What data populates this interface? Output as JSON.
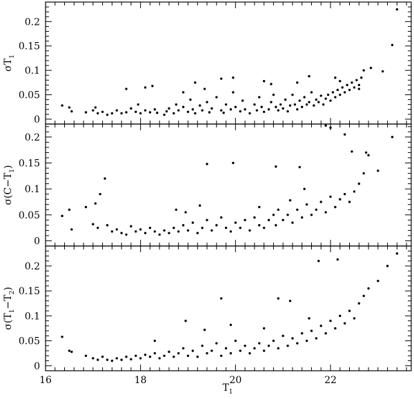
{
  "chart_data": {
    "type": "scatter",
    "shared_x": {
      "label": "T",
      "label_sub": "1",
      "xlim": [
        16.0,
        23.7
      ],
      "ticks": [
        16,
        18,
        20,
        22
      ]
    },
    "panels": [
      {
        "id": "top",
        "ylabel": {
          "prefix": "σT",
          "sub": "1",
          "suffix": ""
        },
        "ylim": [
          -0.01,
          0.24
        ],
        "yticks": [
          "0",
          "0.05",
          "0.1",
          "0.15",
          "0.2"
        ],
        "points": [
          [
            16.35,
            0.028
          ],
          [
            16.5,
            0.024
          ],
          [
            16.55,
            0.016
          ],
          [
            16.85,
            0.014
          ],
          [
            17.0,
            0.018
          ],
          [
            17.05,
            0.024
          ],
          [
            17.1,
            0.012
          ],
          [
            17.2,
            0.015
          ],
          [
            17.3,
            0.009
          ],
          [
            17.4,
            0.012
          ],
          [
            17.5,
            0.018
          ],
          [
            17.6,
            0.012
          ],
          [
            17.7,
            0.014
          ],
          [
            17.8,
            0.022
          ],
          [
            17.9,
            0.015
          ],
          [
            17.95,
            0.03
          ],
          [
            18.0,
            0.012
          ],
          [
            18.1,
            0.018
          ],
          [
            18.2,
            0.014
          ],
          [
            18.3,
            0.02
          ],
          [
            18.35,
            0.013
          ],
          [
            18.5,
            0.009
          ],
          [
            18.55,
            0.016
          ],
          [
            18.6,
            0.022
          ],
          [
            18.7,
            0.012
          ],
          [
            18.75,
            0.03
          ],
          [
            18.8,
            0.018
          ],
          [
            18.9,
            0.025
          ],
          [
            19.0,
            0.015
          ],
          [
            19.05,
            0.04
          ],
          [
            19.1,
            0.02
          ],
          [
            19.15,
            0.012
          ],
          [
            19.25,
            0.028
          ],
          [
            19.3,
            0.018
          ],
          [
            19.4,
            0.035
          ],
          [
            19.45,
            0.014
          ],
          [
            19.5,
            0.022
          ],
          [
            19.6,
            0.045
          ],
          [
            19.7,
            0.018
          ],
          [
            19.75,
            0.013
          ],
          [
            19.8,
            0.03
          ],
          [
            19.9,
            0.02
          ],
          [
            19.95,
            0.055
          ],
          [
            20.0,
            0.025
          ],
          [
            20.1,
            0.016
          ],
          [
            20.15,
            0.038
          ],
          [
            20.2,
            0.02
          ],
          [
            20.3,
            0.012
          ],
          [
            20.4,
            0.03
          ],
          [
            20.45,
            0.018
          ],
          [
            20.5,
            0.045
          ],
          [
            20.55,
            0.025
          ],
          [
            20.6,
            0.015
          ],
          [
            20.7,
            0.02
          ],
          [
            20.75,
            0.035
          ],
          [
            20.8,
            0.05
          ],
          [
            20.85,
            0.025
          ],
          [
            20.9,
            0.018
          ],
          [
            20.95,
            0.03
          ],
          [
            21.0,
            0.022
          ],
          [
            21.05,
            0.04
          ],
          [
            21.1,
            0.016
          ],
          [
            21.15,
            0.028
          ],
          [
            21.2,
            0.05
          ],
          [
            21.25,
            0.03
          ],
          [
            21.3,
            0.02
          ],
          [
            21.35,
            0.038
          ],
          [
            21.4,
            0.025
          ],
          [
            21.45,
            0.045
          ],
          [
            21.5,
            0.03
          ],
          [
            21.55,
            0.035
          ],
          [
            21.6,
            0.055
          ],
          [
            21.65,
            0.028
          ],
          [
            21.7,
            0.04
          ],
          [
            21.75,
            0.035
          ],
          [
            21.8,
            0.048
          ],
          [
            21.85,
            0.03
          ],
          [
            21.9,
            0.042
          ],
          [
            21.95,
            0.05
          ],
          [
            22.0,
            0.038
          ],
          [
            22.05,
            0.055
          ],
          [
            22.1,
            0.045
          ],
          [
            22.15,
            0.06
          ],
          [
            22.2,
            0.05
          ],
          [
            22.25,
            0.065
          ],
          [
            22.3,
            0.055
          ],
          [
            22.35,
            0.07
          ],
          [
            22.4,
            0.06
          ],
          [
            22.45,
            0.075
          ],
          [
            22.5,
            0.065
          ],
          [
            22.55,
            0.08
          ],
          [
            22.6,
            0.07
          ],
          [
            22.65,
            0.085
          ],
          [
            22.7,
            0.1
          ],
          [
            22.85,
            0.105
          ],
          [
            23.1,
            0.098
          ],
          [
            23.3,
            0.152
          ],
          [
            23.4,
            0.225
          ],
          [
            17.7,
            0.062
          ],
          [
            18.1,
            0.065
          ],
          [
            18.25,
            0.068
          ],
          [
            18.9,
            0.055
          ],
          [
            19.15,
            0.075
          ],
          [
            19.35,
            0.062
          ],
          [
            19.7,
            0.083
          ],
          [
            19.95,
            0.085
          ],
          [
            20.6,
            0.078
          ],
          [
            20.75,
            0.072
          ],
          [
            21.3,
            0.075
          ],
          [
            21.55,
            0.088
          ],
          [
            22.1,
            0.085
          ],
          [
            22.6,
            0.062
          ],
          [
            22.2,
            0.078
          ]
        ]
      },
      {
        "id": "middle",
        "ylabel": {
          "prefix": "σ(C−T",
          "sub": "1",
          "suffix": ")"
        },
        "ylim": [
          -0.01,
          0.225
        ],
        "yticks": [
          "0",
          "0.05",
          "0.1",
          "0.15",
          "0.2"
        ],
        "points": [
          [
            16.35,
            0.048
          ],
          [
            16.5,
            0.06
          ],
          [
            16.55,
            0.022
          ],
          [
            16.85,
            0.065
          ],
          [
            17.0,
            0.032
          ],
          [
            17.05,
            0.072
          ],
          [
            17.1,
            0.025
          ],
          [
            17.15,
            0.09
          ],
          [
            17.25,
            0.12
          ],
          [
            17.3,
            0.03
          ],
          [
            17.4,
            0.018
          ],
          [
            17.5,
            0.022
          ],
          [
            17.6,
            0.015
          ],
          [
            17.7,
            0.012
          ],
          [
            17.8,
            0.028
          ],
          [
            17.9,
            0.018
          ],
          [
            18.0,
            0.022
          ],
          [
            18.1,
            0.015
          ],
          [
            18.2,
            0.025
          ],
          [
            18.3,
            0.018
          ],
          [
            18.4,
            0.012
          ],
          [
            18.5,
            0.02
          ],
          [
            18.6,
            0.015
          ],
          [
            18.7,
            0.025
          ],
          [
            18.8,
            0.018
          ],
          [
            18.9,
            0.03
          ],
          [
            19.0,
            0.02
          ],
          [
            19.1,
            0.035
          ],
          [
            19.2,
            0.015
          ],
          [
            19.3,
            0.025
          ],
          [
            19.4,
            0.04
          ],
          [
            19.5,
            0.02
          ],
          [
            19.6,
            0.03
          ],
          [
            19.7,
            0.045
          ],
          [
            19.8,
            0.025
          ],
          [
            19.9,
            0.018
          ],
          [
            20.0,
            0.035
          ],
          [
            20.1,
            0.025
          ],
          [
            20.2,
            0.04
          ],
          [
            20.3,
            0.02
          ],
          [
            20.4,
            0.045
          ],
          [
            20.5,
            0.03
          ],
          [
            20.6,
            0.025
          ],
          [
            20.7,
            0.04
          ],
          [
            20.8,
            0.05
          ],
          [
            20.85,
            0.03
          ],
          [
            20.9,
            0.06
          ],
          [
            21.0,
            0.04
          ],
          [
            21.1,
            0.05
          ],
          [
            21.2,
            0.035
          ],
          [
            21.3,
            0.06
          ],
          [
            21.4,
            0.045
          ],
          [
            21.5,
            0.07
          ],
          [
            21.6,
            0.05
          ],
          [
            21.7,
            0.06
          ],
          [
            21.8,
            0.075
          ],
          [
            21.9,
            0.055
          ],
          [
            22.0,
            0.085
          ],
          [
            22.1,
            0.065
          ],
          [
            22.2,
            0.08
          ],
          [
            22.3,
            0.09
          ],
          [
            22.4,
            0.075
          ],
          [
            22.5,
            0.095
          ],
          [
            22.6,
            0.11
          ],
          [
            22.7,
            0.13
          ],
          [
            22.8,
            0.165
          ],
          [
            23.0,
            0.135
          ],
          [
            23.3,
            0.2
          ],
          [
            22.75,
            0.17
          ],
          [
            19.4,
            0.148
          ],
          [
            19.95,
            0.15
          ],
          [
            20.85,
            0.143
          ],
          [
            21.35,
            0.142
          ],
          [
            21.45,
            0.1
          ],
          [
            21.9,
            0.222
          ],
          [
            22.0,
            0.218
          ],
          [
            22.3,
            0.205
          ],
          [
            22.45,
            0.172
          ],
          [
            18.75,
            0.06
          ],
          [
            18.95,
            0.055
          ],
          [
            19.25,
            0.068
          ],
          [
            20.5,
            0.065
          ],
          [
            21.15,
            0.078
          ]
        ]
      },
      {
        "id": "bottom",
        "ylabel": {
          "prefix": "σ(T",
          "sub": "1",
          "suffix": "−T",
          "sub2": "2",
          "suffix2": ")"
        },
        "ylim": [
          -0.01,
          0.24
        ],
        "yticks": [
          "0",
          "0.05",
          "0.1",
          "0.15",
          "0.2"
        ],
        "points": [
          [
            16.35,
            0.058
          ],
          [
            16.5,
            0.03
          ],
          [
            16.55,
            0.028
          ],
          [
            16.85,
            0.02
          ],
          [
            17.0,
            0.015
          ],
          [
            17.1,
            0.012
          ],
          [
            17.2,
            0.018
          ],
          [
            17.3,
            0.012
          ],
          [
            17.4,
            0.01
          ],
          [
            17.5,
            0.015
          ],
          [
            17.6,
            0.012
          ],
          [
            17.7,
            0.018
          ],
          [
            17.8,
            0.013
          ],
          [
            17.9,
            0.02
          ],
          [
            18.0,
            0.015
          ],
          [
            18.1,
            0.022
          ],
          [
            18.2,
            0.018
          ],
          [
            18.3,
            0.025
          ],
          [
            18.4,
            0.015
          ],
          [
            18.5,
            0.02
          ],
          [
            18.6,
            0.028
          ],
          [
            18.7,
            0.018
          ],
          [
            18.8,
            0.025
          ],
          [
            18.9,
            0.035
          ],
          [
            19.0,
            0.02
          ],
          [
            19.1,
            0.03
          ],
          [
            19.2,
            0.018
          ],
          [
            19.3,
            0.04
          ],
          [
            19.4,
            0.025
          ],
          [
            19.5,
            0.03
          ],
          [
            19.6,
            0.045
          ],
          [
            19.7,
            0.02
          ],
          [
            19.8,
            0.035
          ],
          [
            19.9,
            0.025
          ],
          [
            20.0,
            0.05
          ],
          [
            20.1,
            0.03
          ],
          [
            20.2,
            0.04
          ],
          [
            20.3,
            0.025
          ],
          [
            20.4,
            0.035
          ],
          [
            20.5,
            0.045
          ],
          [
            20.6,
            0.03
          ],
          [
            20.7,
            0.04
          ],
          [
            20.8,
            0.05
          ],
          [
            20.9,
            0.035
          ],
          [
            21.0,
            0.06
          ],
          [
            21.1,
            0.04
          ],
          [
            21.2,
            0.055
          ],
          [
            21.3,
            0.045
          ],
          [
            21.4,
            0.065
          ],
          [
            21.5,
            0.05
          ],
          [
            21.6,
            0.07
          ],
          [
            21.7,
            0.055
          ],
          [
            21.8,
            0.08
          ],
          [
            21.9,
            0.065
          ],
          [
            22.0,
            0.09
          ],
          [
            22.1,
            0.075
          ],
          [
            22.2,
            0.1
          ],
          [
            22.3,
            0.085
          ],
          [
            22.4,
            0.11
          ],
          [
            22.5,
            0.095
          ],
          [
            22.6,
            0.125
          ],
          [
            22.7,
            0.14
          ],
          [
            22.8,
            0.155
          ],
          [
            23.0,
            0.17
          ],
          [
            23.2,
            0.2
          ],
          [
            23.4,
            0.225
          ],
          [
            19.7,
            0.135
          ],
          [
            20.9,
            0.135
          ],
          [
            21.15,
            0.13
          ],
          [
            21.75,
            0.21
          ],
          [
            22.15,
            0.213
          ],
          [
            18.3,
            0.05
          ],
          [
            18.95,
            0.09
          ],
          [
            19.35,
            0.072
          ],
          [
            19.9,
            0.082
          ],
          [
            20.6,
            0.075
          ],
          [
            21.55,
            0.095
          ]
        ]
      }
    ]
  }
}
